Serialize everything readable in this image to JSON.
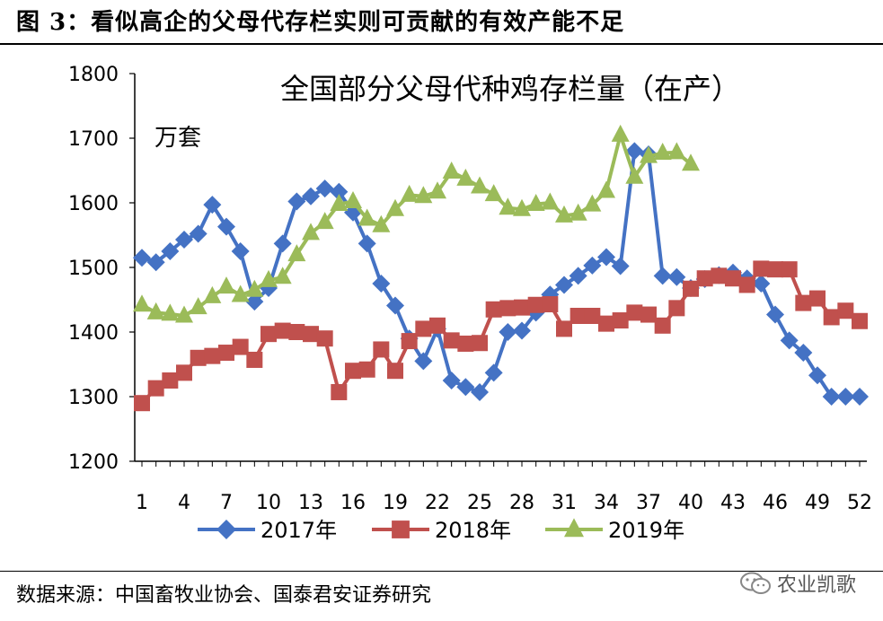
{
  "figure": {
    "title": "图 3：看似高企的父母代存栏实则可贡献的有效产能不足",
    "source": "数据来源：中国畜牧业协会、国泰君安证券研究",
    "watermark": "农业凯歌"
  },
  "chart_data": {
    "type": "line",
    "title": "全国部分父母代种鸡存栏量（在产）",
    "ylabel": "万套",
    "xlabel": "",
    "ylim": [
      1200,
      1800
    ],
    "yticks": [
      1200,
      1300,
      1400,
      1500,
      1600,
      1700,
      1800
    ],
    "xlim": [
      1,
      52
    ],
    "xticks": [
      1,
      4,
      7,
      10,
      13,
      16,
      19,
      22,
      25,
      28,
      31,
      34,
      37,
      40,
      43,
      46,
      49,
      52
    ],
    "grid": false,
    "legend": "bottom",
    "series": [
      {
        "name": "2017年",
        "color": "#4472C4",
        "marker": "diamond",
        "x": [
          1,
          2,
          3,
          4,
          5,
          6,
          7,
          8,
          9,
          10,
          11,
          12,
          13,
          14,
          15,
          16,
          17,
          18,
          19,
          20,
          21,
          22,
          23,
          24,
          25,
          26,
          27,
          28,
          29,
          30,
          31,
          32,
          33,
          34,
          35,
          36,
          37,
          38,
          39,
          40,
          41,
          42,
          43,
          44,
          45,
          46,
          47,
          48,
          49,
          50,
          51,
          52
        ],
        "values": [
          1515,
          1508,
          1525,
          1543,
          1552,
          1597,
          1563,
          1525,
          1447,
          1468,
          1537,
          1602,
          1610,
          1622,
          1617,
          1585,
          1537,
          1475,
          1441,
          1390,
          1355,
          1405,
          1325,
          1315,
          1307,
          1337,
          1400,
          1402,
          1430,
          1458,
          1473,
          1487,
          1503,
          1516,
          1502,
          1680,
          1675,
          1487,
          1485,
          1468,
          1482,
          1488,
          1492,
          1483,
          1475,
          1427,
          1387,
          1368,
          1333,
          1300,
          1300,
          1300
        ]
      },
      {
        "name": "2018年",
        "color": "#C0504D",
        "marker": "square",
        "x": [
          1,
          2,
          3,
          4,
          5,
          6,
          7,
          8,
          9,
          10,
          11,
          12,
          13,
          14,
          15,
          16,
          17,
          18,
          19,
          20,
          21,
          22,
          23,
          24,
          25,
          26,
          27,
          28,
          29,
          30,
          31,
          32,
          33,
          34,
          35,
          36,
          37,
          38,
          39,
          40,
          41,
          42,
          43,
          44,
          45,
          46,
          47,
          48,
          49,
          50,
          51,
          52
        ],
        "values": [
          1290,
          1313,
          1325,
          1337,
          1360,
          1363,
          1368,
          1377,
          1357,
          1397,
          1402,
          1400,
          1397,
          1390,
          1307,
          1340,
          1342,
          1373,
          1340,
          1386,
          1405,
          1410,
          1387,
          1382,
          1383,
          1435,
          1437,
          1438,
          1442,
          1443,
          1405,
          1425,
          1425,
          1413,
          1418,
          1430,
          1427,
          1410,
          1437,
          1467,
          1483,
          1487,
          1483,
          1473,
          1498,
          1497,
          1497,
          1445,
          1452,
          1423,
          1433,
          1417
        ]
      },
      {
        "name": "2019年",
        "color": "#9BBB59",
        "marker": "triangle",
        "x": [
          1,
          2,
          3,
          4,
          5,
          6,
          7,
          8,
          9,
          10,
          11,
          12,
          13,
          14,
          15,
          16,
          17,
          18,
          19,
          20,
          21,
          22,
          23,
          24,
          25,
          26,
          27,
          28,
          29,
          30,
          31,
          32,
          33,
          34,
          35,
          36,
          37,
          38,
          39,
          40
        ],
        "values": [
          1442,
          1430,
          1428,
          1425,
          1438,
          1455,
          1470,
          1457,
          1465,
          1480,
          1485,
          1520,
          1553,
          1570,
          1598,
          1602,
          1575,
          1565,
          1590,
          1612,
          1610,
          1617,
          1648,
          1637,
          1625,
          1613,
          1592,
          1590,
          1598,
          1600,
          1580,
          1583,
          1597,
          1618,
          1705,
          1640,
          1672,
          1677,
          1678,
          1660
        ]
      }
    ]
  }
}
